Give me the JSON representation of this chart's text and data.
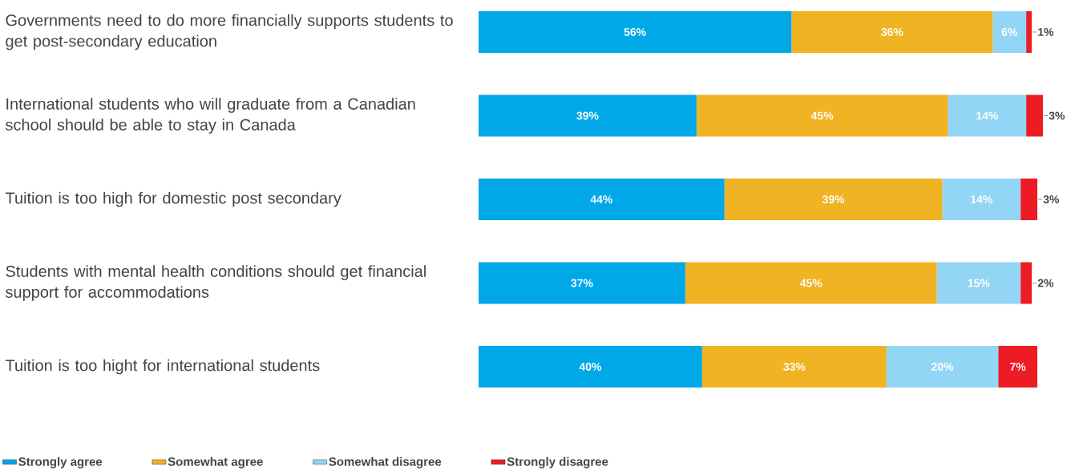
{
  "chart_data": {
    "type": "bar",
    "orientation": "horizontal",
    "stacked": true,
    "categories": [
      "Governments need to do more financially supports students to get post-secondary education",
      "International students who will graduate from a Canadian school should be able to stay in Canada",
      "Tuition is too high for domestic post secondary",
      "Students with mental health conditions should get financial support for accommodations",
      "Tuition is too hight for international students"
    ],
    "series": [
      {
        "name": "Strongly agree",
        "color": "#00a8e8",
        "values": [
          56,
          39,
          44,
          37,
          40
        ],
        "value_labels": [
          "56%",
          "39%",
          "44%",
          "37%",
          "40%"
        ]
      },
      {
        "name": "Somewhat agree",
        "color": "#f0b323",
        "values": [
          36,
          45,
          39,
          45,
          33
        ],
        "value_labels": [
          "36%",
          "45%",
          "39%",
          "45%",
          "33%"
        ]
      },
      {
        "name": "Somewhat disagree",
        "color": "#93d5f5",
        "values": [
          6,
          14,
          14,
          15,
          20
        ],
        "value_labels": [
          "6%",
          "14%",
          "14%",
          "15%",
          "20%"
        ]
      },
      {
        "name": "Strongly disagree",
        "color": "#ed1c24",
        "values": [
          1,
          3,
          3,
          2,
          7
        ],
        "value_labels": [
          "1%",
          "3%",
          "3%",
          "2%",
          "7%"
        ]
      }
    ],
    "legend": "bottom left",
    "tick_labels": "y"
  }
}
